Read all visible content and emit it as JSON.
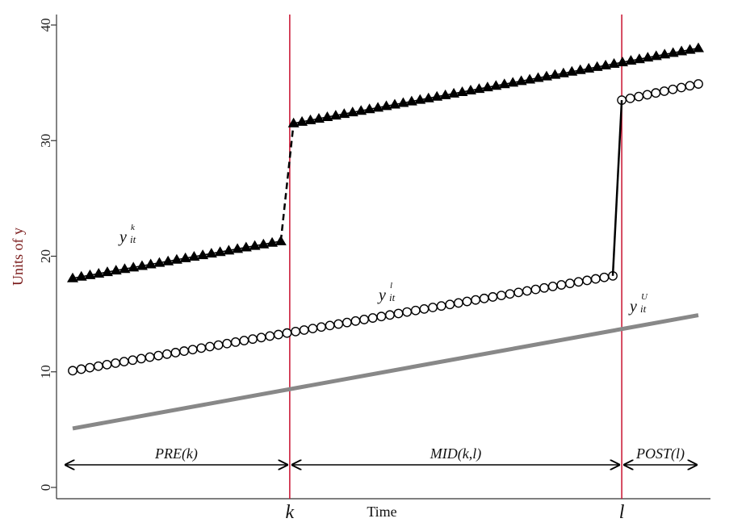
{
  "chart_data": {
    "type": "line",
    "xlabel": "Time",
    "ylabel": "Units of y",
    "ylim": [
      0,
      40
    ],
    "yticks": [
      0,
      10,
      20,
      30,
      40
    ],
    "t_range": [
      1,
      50
    ],
    "grid": false,
    "legend": "none",
    "vertical_lines": [
      {
        "label": "k",
        "t": 18,
        "color": "#c8102e"
      },
      {
        "label": "l",
        "t": 44,
        "color": "#c8102e"
      }
    ],
    "periods": [
      {
        "label": "PRE(k)",
        "from": 1,
        "to": 18
      },
      {
        "label": "MID(k,l)",
        "from": 18,
        "to": 44
      },
      {
        "label": "POST(l)",
        "from": 44,
        "to": 50
      }
    ],
    "series": [
      {
        "label": {
          "base": "y",
          "sup": "k",
          "sub": "it"
        },
        "marker": "triangle",
        "color": "#000000",
        "segments": [
          {
            "t": [
              1,
              17.3
            ],
            "y": [
              18.1,
              21.3
            ]
          },
          {
            "t": [
              18.3,
              50
            ],
            "y": [
              31.5,
              38.0
            ]
          }
        ],
        "jump": {
          "t": [
            17.3,
            18.3
          ],
          "y": [
            21.3,
            31.5
          ],
          "style": "dashed"
        }
      },
      {
        "label": {
          "base": "y",
          "sup": "l",
          "sub": "it"
        },
        "marker": "circle",
        "color": "#000000",
        "segments": [
          {
            "t": [
              1,
              43.3
            ],
            "y": [
              10.1,
              18.3
            ]
          },
          {
            "t": [
              44.0,
              50
            ],
            "y": [
              33.5,
              34.9
            ]
          }
        ],
        "jump": {
          "t": [
            43.3,
            44.0
          ],
          "y": [
            18.3,
            33.5
          ],
          "style": "solid"
        }
      },
      {
        "label": {
          "base": "y",
          "sup": "U",
          "sub": "it"
        },
        "marker": "none",
        "color": "#888888",
        "segments": [
          {
            "t": [
              1,
              50
            ],
            "y": [
              5.1,
              14.9
            ]
          }
        ]
      }
    ]
  }
}
